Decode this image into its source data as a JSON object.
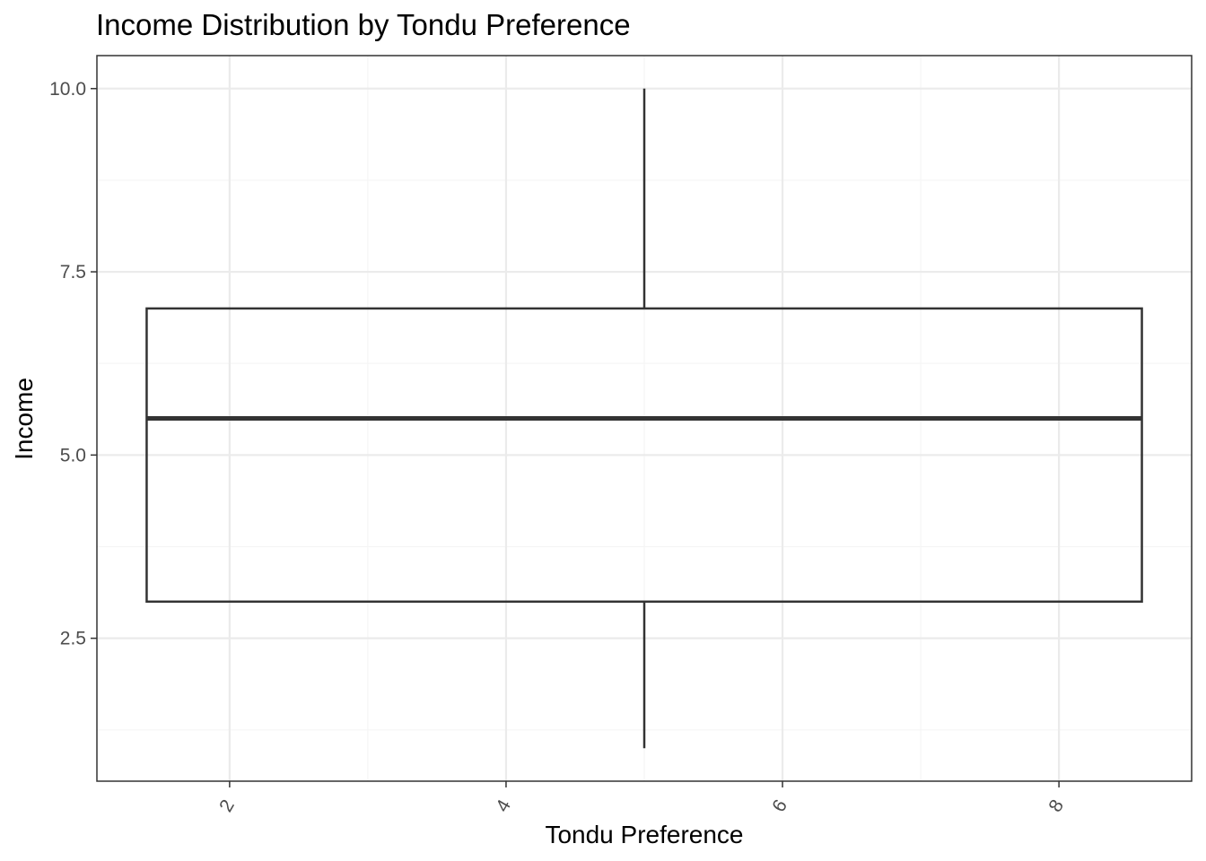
{
  "chart_data": {
    "type": "boxplot",
    "title": "Income Distribution by Tondu Preference",
    "xlabel": "Tondu Preference",
    "ylabel": "Income",
    "xlim": [
      1.04,
      8.96
    ],
    "ylim": [
      0.55,
      10.45
    ],
    "x_ticks": [
      2,
      4,
      6,
      8
    ],
    "x_tick_labels": [
      "2",
      "4",
      "6",
      "8"
    ],
    "x_minor_ticks": [
      3,
      5,
      7
    ],
    "y_ticks": [
      2.5,
      5.0,
      7.5,
      10.0
    ],
    "y_tick_labels": [
      "2.5",
      "5.0",
      "7.5",
      "10.0"
    ],
    "y_minor_ticks": [
      1.25,
      3.75,
      6.25,
      8.75
    ],
    "grid": true,
    "boxes": [
      {
        "x_center": 5,
        "x_range": [
          1.4,
          8.6
        ],
        "min": 1,
        "q1": 3,
        "median": 5.5,
        "q3": 7,
        "max": 10
      }
    ],
    "colors": {
      "grid_major": "#ebebeb",
      "grid_minor": "#f5f5f5",
      "panel_border": "#333333",
      "box_line": "#333333"
    }
  }
}
